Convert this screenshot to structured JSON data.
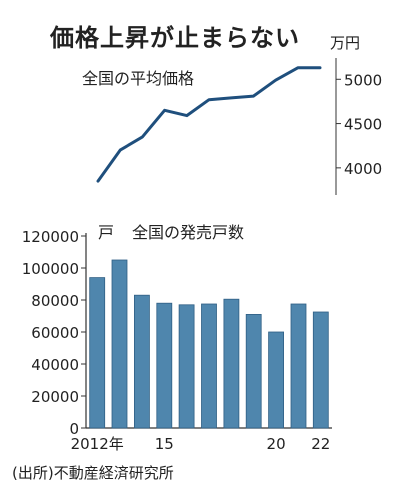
{
  "title": "価格上昇が止まらない",
  "source": "(出所)不動産経済研究所",
  "colors": {
    "line": "#1f4f7d",
    "bar": "#4f86ad",
    "bar_edge": "#2f5f84",
    "axis": "#333333"
  },
  "chart_data": [
    {
      "type": "line",
      "title": "全国の平均価格",
      "unit": "万円",
      "x": [
        2012,
        2013,
        2014,
        2015,
        2016,
        2017,
        2018,
        2019,
        2020,
        2021,
        2022
      ],
      "values": [
        3850,
        4200,
        4350,
        4650,
        4590,
        4770,
        4790,
        4810,
        4990,
        5130,
        5130
      ],
      "ylim": [
        3750,
        5150
      ],
      "yticks": [
        4000,
        4500,
        5000
      ],
      "ytick_labels": [
        "4000",
        "4500",
        "5000"
      ],
      "y_axis_position": "right",
      "grid": false
    },
    {
      "type": "bar",
      "title": "全国の発売戸数",
      "unit": "戸",
      "x": [
        2012,
        2013,
        2014,
        2015,
        2016,
        2017,
        2018,
        2019,
        2020,
        2021,
        2022
      ],
      "values": [
        94000,
        105000,
        83000,
        78000,
        77000,
        77500,
        80500,
        71000,
        60000,
        77500,
        72500
      ],
      "ylim": [
        0,
        120000
      ],
      "yticks": [
        0,
        20000,
        40000,
        60000,
        80000,
        100000,
        120000
      ],
      "ytick_labels": [
        "0",
        "20000",
        "40000",
        "60000",
        "80000",
        "100000",
        "120000"
      ],
      "xtick_labels": [
        {
          "index": 0,
          "label": "2012年"
        },
        {
          "index": 3,
          "label": "15"
        },
        {
          "index": 8,
          "label": "20"
        },
        {
          "index": 10,
          "label": "22"
        }
      ],
      "grid": false
    }
  ]
}
